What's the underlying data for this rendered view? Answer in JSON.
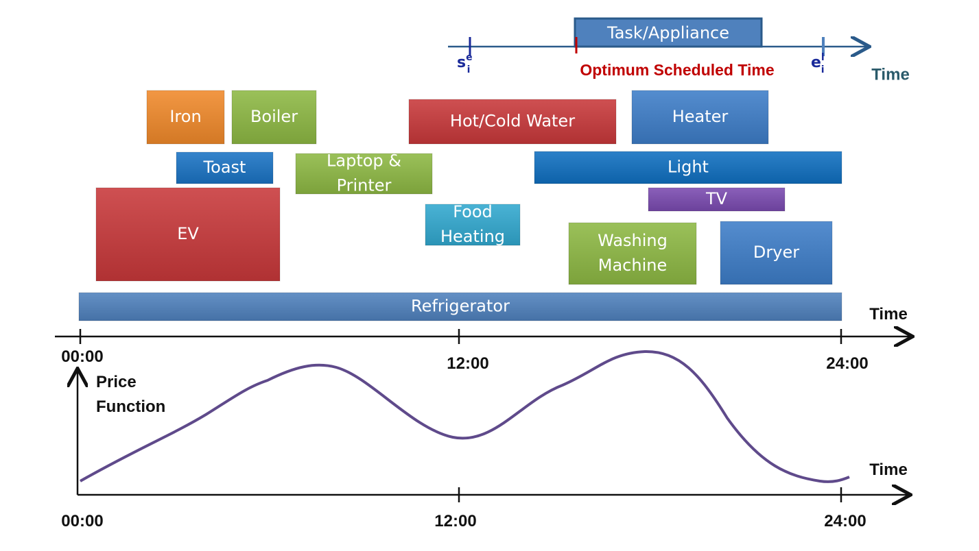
{
  "legend": {
    "task": "Task/Appliance",
    "start": {
      "base": "s",
      "sub": "i",
      "sup": "e"
    },
    "end": {
      "base": "e",
      "sub": "i",
      "sup": "l"
    },
    "optimum": "Optimum Scheduled Time",
    "axis_label": "Time"
  },
  "tasks": [
    {
      "lines": [
        "Iron"
      ]
    },
    {
      "lines": [
        "Boiler"
      ]
    },
    {
      "lines": [
        "Toast"
      ]
    },
    {
      "lines": [
        "Laptop &",
        "Printer"
      ]
    },
    {
      "lines": [
        "EV"
      ]
    },
    {
      "lines": [
        "Hot/Cold Water"
      ]
    },
    {
      "lines": [
        "Food",
        "Heating"
      ]
    },
    {
      "lines": [
        "Heater"
      ]
    },
    {
      "lines": [
        "Light"
      ]
    },
    {
      "lines": [
        "TV"
      ]
    },
    {
      "lines": [
        "Washing",
        "Machine"
      ]
    },
    {
      "lines": [
        "Dryer"
      ]
    },
    {
      "lines": [
        "Refrigerator"
      ]
    }
  ],
  "schedule_axis": {
    "label": "Time",
    "ticks": [
      "00:00",
      "12:00",
      "24:00"
    ]
  },
  "price_axis": {
    "y_label": [
      "Price",
      "Function"
    ],
    "x_label": "Time",
    "ticks": [
      "00:00",
      "12:00",
      "24:00"
    ]
  }
}
